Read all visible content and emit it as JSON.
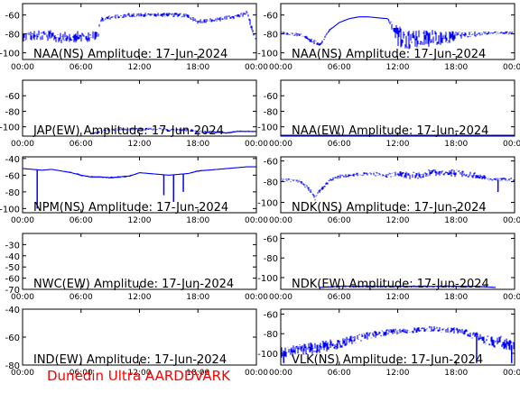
{
  "footer": "Dunedin Ultra AARDDVARK",
  "colors": {
    "trace": "#0000ff",
    "axis": "#000000",
    "footer": "#ff0000"
  },
  "x_ticks": [
    "00:00",
    "06:00",
    "12:00",
    "18:00",
    "00:00"
  ],
  "chart_data": [
    {
      "type": "line",
      "title": "NAA(NS) Amplitude: 17-Jun-2024",
      "x_hours": [
        0,
        24
      ],
      "ylim": [
        -107,
        -48
      ],
      "yticks": [
        -60,
        -80,
        -100
      ],
      "series": [
        {
          "hours": [
            0,
            1,
            2,
            3,
            4,
            5,
            6,
            6.5,
            7,
            7.8,
            8,
            9,
            10,
            11,
            12,
            13,
            14,
            15,
            16,
            17,
            18,
            19,
            20,
            21,
            22,
            23,
            23.9
          ],
          "values": [
            -82,
            -82,
            -82,
            -82,
            -84,
            -83,
            -83,
            -84,
            -84,
            -80,
            -64,
            -63,
            -61,
            -60,
            -60,
            -60,
            -60,
            -60,
            -60,
            -61,
            -67,
            -66,
            -65,
            -63,
            -62,
            -58,
            -82
          ],
          "noise": [
            10,
            10,
            10,
            10,
            10,
            10,
            10,
            10,
            10,
            8,
            6,
            4,
            4,
            4,
            4,
            4,
            4,
            4,
            4,
            4,
            4,
            4,
            4,
            4,
            4,
            4,
            10
          ]
        }
      ]
    },
    {
      "type": "line",
      "title": "NAA(NS) Amplitude: 17-Jun-2024",
      "x_hours": [
        0,
        24
      ],
      "ylim": [
        -107,
        -48
      ],
      "yticks": [
        -60,
        -80,
        -100
      ],
      "series": [
        {
          "hours": [
            0,
            1,
            2,
            3,
            4,
            5,
            6,
            7,
            8,
            9,
            10,
            11,
            12,
            13,
            14,
            15,
            16,
            17,
            18,
            19,
            20,
            21,
            22,
            23,
            24
          ],
          "values": [
            -79,
            -80,
            -81,
            -86,
            -92,
            -76,
            -68,
            -64,
            -62,
            -62,
            -63,
            -64,
            -82,
            -87,
            -86,
            -85,
            -84,
            -84,
            -82,
            -81,
            -80,
            -79,
            -79,
            -79,
            -79
          ],
          "noise": [
            3,
            3,
            3,
            4,
            4,
            2,
            1,
            1,
            1,
            1,
            1,
            1,
            18,
            18,
            17,
            16,
            14,
            12,
            8,
            5,
            5,
            3,
            3,
            3,
            3
          ]
        }
      ]
    },
    {
      "type": "line",
      "title": "JAP(EW) Amplitude: 17-Jun-2024",
      "x_hours": [
        0,
        24
      ],
      "ylim": [
        -112,
        -40
      ],
      "yticks": [
        -60,
        -80,
        -100
      ],
      "series": [
        {
          "hours": [
            7,
            8,
            9,
            10,
            11,
            12,
            13,
            14,
            15,
            16,
            17,
            18,
            19,
            20,
            21,
            22,
            23,
            24
          ],
          "values": [
            -109,
            -106,
            -104,
            -104,
            -103,
            -103,
            -103,
            -103,
            -104,
            -104,
            -104,
            -106,
            -107,
            -107,
            -108,
            -106,
            -106,
            -106
          ],
          "noise": [
            2,
            3,
            3,
            3,
            3,
            3,
            3,
            3,
            3,
            3,
            3,
            3,
            3,
            2,
            2,
            2,
            2,
            2
          ]
        }
      ]
    },
    {
      "type": "line",
      "title": "NAA(EW) Amplitude: 17-Jun-2024",
      "x_hours": [
        0,
        24
      ],
      "ylim": [
        -112,
        -40
      ],
      "yticks": [
        -60,
        -80,
        -100
      ],
      "series": [
        {
          "hours": [
            0,
            3,
            6,
            9,
            12,
            15,
            18,
            21,
            24
          ],
          "values": [
            -111,
            -111,
            -111,
            -111,
            -111,
            -111,
            -111,
            -111,
            -111
          ],
          "noise": [
            0,
            0,
            0,
            0,
            0,
            0,
            0,
            0,
            0
          ]
        }
      ]
    },
    {
      "type": "line",
      "title": "NPM(NS) Amplitude: 17-Jun-2024",
      "x_hours": [
        0,
        24
      ],
      "ylim": [
        -105,
        -38
      ],
      "yticks": [
        -40,
        -60,
        -80,
        -100
      ],
      "series": [
        {
          "hours": [
            0,
            1,
            2,
            3,
            4,
            5,
            6,
            7,
            8,
            9,
            10,
            11,
            12,
            13,
            14,
            15,
            16,
            17,
            18,
            19,
            20,
            21,
            22,
            23,
            24
          ],
          "values": [
            -52,
            -53,
            -54,
            -53,
            -55,
            -57,
            -60,
            -62,
            -62,
            -63,
            -62,
            -61,
            -57,
            -58,
            -59,
            -60,
            -59,
            -58,
            -55,
            -54,
            -53,
            -52,
            -51,
            -50,
            -50
          ],
          "noise": [
            1,
            1,
            1,
            1,
            1,
            2,
            2,
            2,
            2,
            2,
            2,
            2,
            1,
            1,
            1,
            1,
            1,
            1,
            2,
            1,
            1,
            1,
            1,
            1,
            1
          ]
        }
      ],
      "spikes": [
        [
          1.5,
          -100
        ],
        [
          14.5,
          -84
        ],
        [
          15.5,
          -92
        ],
        [
          16.5,
          -80
        ]
      ]
    },
    {
      "type": "line",
      "title": "NDK(NS) Amplitude: 17-Jun-2024",
      "x_hours": [
        0,
        24
      ],
      "ylim": [
        -110,
        -56
      ],
      "yticks": [
        -60,
        -80,
        -100
      ],
      "series": [
        {
          "hours": [
            0,
            1,
            2,
            3,
            3.5,
            4,
            5,
            6,
            7,
            8,
            9,
            10,
            11,
            12,
            13,
            14,
            15,
            16,
            17,
            18,
            19,
            20,
            21,
            22,
            23,
            24
          ],
          "values": [
            -78,
            -79,
            -80,
            -88,
            -96,
            -89,
            -79,
            -75,
            -74,
            -73,
            -72,
            -73,
            -74,
            -72,
            -74,
            -74,
            -72,
            -71,
            -71,
            -72,
            -73,
            -74,
            -76,
            -78,
            -78,
            -78
          ],
          "noise": [
            3,
            3,
            3,
            4,
            4,
            4,
            3,
            3,
            3,
            3,
            3,
            4,
            4,
            4,
            6,
            6,
            6,
            6,
            6,
            6,
            5,
            5,
            4,
            3,
            3,
            3
          ]
        }
      ],
      "spikes": [
        [
          22.3,
          -90
        ]
      ]
    },
    {
      "type": "line",
      "title": "NWC(EW) Amplitude: 17-Jun-2024",
      "x_hours": [
        0,
        24
      ],
      "ylim": [
        -70,
        -20
      ],
      "yticks": [
        -30,
        -40,
        -50,
        -60,
        -70
      ],
      "series": []
    },
    {
      "type": "line",
      "title": "NDK(EW) Amplitude: 17-Jun-2024",
      "x_hours": [
        0,
        24
      ],
      "ylim": [
        -112,
        -55
      ],
      "yticks": [
        -60,
        -80,
        -100
      ],
      "series": [
        {
          "hours": [
            4,
            6,
            8,
            10,
            12,
            14,
            16,
            18,
            20,
            22
          ],
          "values": [
            -110,
            -109,
            -109,
            -109,
            -109,
            -109,
            -109,
            -109,
            -109,
            -110
          ],
          "noise": [
            1,
            2,
            2,
            2,
            2,
            2,
            2,
            2,
            2,
            1
          ]
        }
      ]
    },
    {
      "type": "line",
      "title": "IND(EW) Amplitude: 17-Jun-2024",
      "x_hours": [
        0,
        24
      ],
      "ylim": [
        -80,
        -40
      ],
      "yticks": [
        -40,
        -60,
        -80
      ],
      "series": []
    },
    {
      "type": "line",
      "title": "VLK(NS) Amplitude: 17-Jun-2024",
      "x_hours": [
        0,
        24
      ],
      "ylim": [
        -112,
        -55
      ],
      "yticks": [
        -60,
        -80,
        -100
      ],
      "series": [
        {
          "hours": [
            0,
            1,
            2,
            3,
            4,
            5,
            6,
            7,
            8,
            9,
            10,
            11,
            12,
            13,
            14,
            15,
            16,
            17,
            18,
            19,
            20,
            21,
            22,
            23,
            24
          ],
          "values": [
            -99,
            -98,
            -96,
            -95,
            -94,
            -92,
            -90,
            -87,
            -85,
            -82,
            -80,
            -79,
            -78,
            -77,
            -76,
            -75,
            -75,
            -76,
            -77,
            -79,
            -82,
            -85,
            -88,
            -90,
            -92
          ],
          "noise": [
            10,
            10,
            10,
            10,
            10,
            10,
            9,
            8,
            8,
            7,
            6,
            6,
            6,
            5,
            5,
            5,
            5,
            5,
            6,
            6,
            8,
            10,
            12,
            12,
            10
          ]
        }
      ],
      "spikes": [
        [
          0.3,
          -110
        ],
        [
          20.1,
          -110
        ],
        [
          23.7,
          -110
        ]
      ]
    }
  ]
}
